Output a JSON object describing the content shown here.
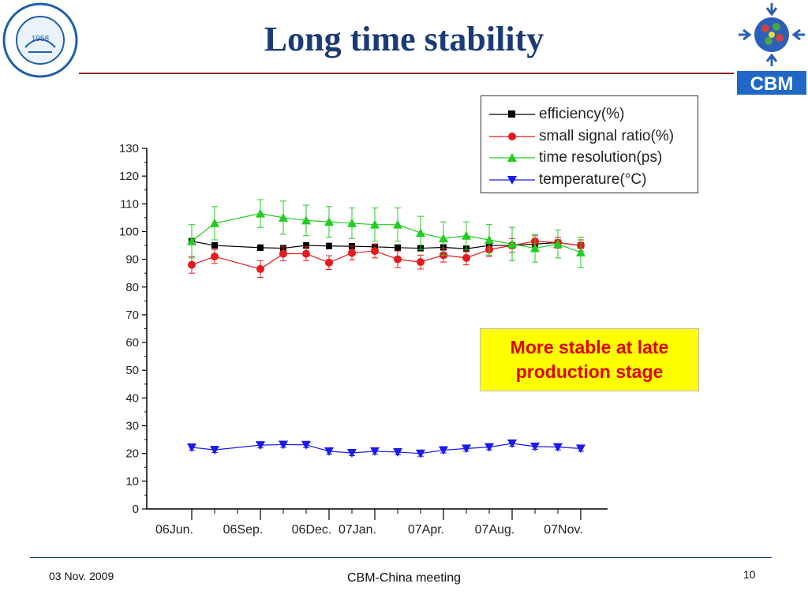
{
  "slide": {
    "title": "Long time stability",
    "callout": [
      "More stable at late",
      "production stage"
    ],
    "footer_date": "03 Nov. 2009",
    "footer_center": "CBM-China meeting",
    "page_number": "10",
    "logo_left_text": "1958",
    "logo_right_text": "CBM"
  },
  "colors": {
    "title": "#1a3a78",
    "rule": "#8b1a2e",
    "callout_bg": "#ffff00",
    "callout_text": "#e00000"
  },
  "chart_data": {
    "type": "line",
    "x": [
      1,
      2,
      4,
      5,
      6,
      7,
      8,
      9,
      10,
      11,
      12,
      13,
      14,
      15,
      16,
      17,
      18
    ],
    "xticks": [
      {
        "x": 1,
        "label": "06Jun."
      },
      {
        "x": 4,
        "label": "06Sep."
      },
      {
        "x": 7,
        "label": "06Dec."
      },
      {
        "x": 9,
        "label": "07Jan."
      },
      {
        "x": 12,
        "label": "07Apr."
      },
      {
        "x": 15,
        "label": "07Aug."
      },
      {
        "x": 18,
        "label": "07Nov."
      }
    ],
    "xlim": [
      0,
      19
    ],
    "ylim": [
      0,
      130
    ],
    "yticks": [
      0,
      10,
      20,
      30,
      40,
      50,
      60,
      70,
      80,
      90,
      100,
      110,
      120,
      130
    ],
    "legend_position": "top-right",
    "series": [
      {
        "name": "efficiency(%)",
        "color": "#000000",
        "marker": "square",
        "values": [
          96.5,
          95,
          94.2,
          94,
          95,
          94.8,
          94.7,
          94.5,
          94.2,
          94,
          94.3,
          93.8,
          95,
          95,
          95.5,
          96,
          95
        ],
        "errors": [
          1,
          1,
          1,
          1,
          1,
          1,
          1,
          1,
          1,
          1,
          1,
          1,
          1,
          1,
          1,
          1,
          1
        ]
      },
      {
        "name": "small signal ratio(%)",
        "color": "#e41a1c",
        "marker": "circle",
        "values": [
          88,
          91,
          86.5,
          92,
          92,
          88.8,
          92.3,
          93,
          90,
          89,
          91.5,
          90.5,
          93.5,
          95,
          96.5,
          96,
          95
        ],
        "errors": [
          3,
          2.5,
          3,
          2.5,
          2.5,
          2.5,
          2.5,
          2.5,
          3,
          2.5,
          2.5,
          2.5,
          2.5,
          2.5,
          2,
          2,
          2
        ]
      },
      {
        "name": "time resolution(ps)",
        "color": "#22cc22",
        "marker": "triangle-up",
        "values": [
          96.5,
          103,
          106.5,
          105,
          104,
          103.5,
          103,
          102.5,
          102.5,
          99.5,
          97.5,
          98.5,
          97,
          95.5,
          94,
          95.5,
          92.5
        ],
        "errors": [
          6,
          6,
          5,
          6,
          5.5,
          5.5,
          5.5,
          6,
          6,
          6,
          6,
          5,
          5.5,
          6,
          5,
          5,
          5.5
        ]
      },
      {
        "name": "temperature(°C)",
        "color": "#1a1aee",
        "marker": "triangle-down",
        "values": [
          22.2,
          21.3,
          23,
          23.2,
          23.1,
          20.8,
          20.2,
          20.8,
          20.5,
          20,
          21.2,
          21.8,
          22.3,
          23.6,
          22.5,
          22.3,
          21.8
        ],
        "errors": [
          1,
          1,
          1,
          1,
          1,
          1,
          1,
          1,
          1,
          1,
          1,
          1,
          1,
          1,
          1,
          1,
          1
        ]
      }
    ]
  }
}
